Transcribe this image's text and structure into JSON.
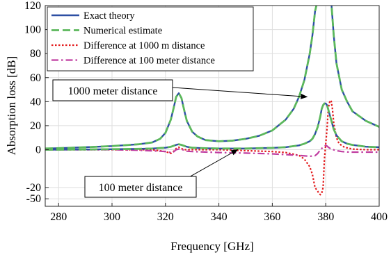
{
  "chart_data": {
    "type": "line",
    "xlabel": "Frequency [GHz]",
    "ylabel": "Absorption loss [dB]",
    "xlim": [
      275,
      400
    ],
    "ylim": [
      -60,
      120
    ],
    "x_ticks": [
      280,
      300,
      320,
      340,
      360,
      380,
      400
    ],
    "y_ticks": [
      -50,
      -20,
      0,
      20,
      40,
      60,
      80,
      100,
      120
    ],
    "y_tick_labels": [
      "-50",
      "-20",
      "0",
      "20",
      "40",
      "60",
      "80",
      "100",
      "120"
    ],
    "grid": true,
    "legend_position": "top-left",
    "series": [
      {
        "name": "Exact theory",
        "color": "#2d4fa3",
        "style": "solid",
        "x": [
          275,
          280,
          290,
          300,
          310,
          315,
          318,
          320,
          322,
          323,
          324,
          325,
          326,
          327,
          328,
          330,
          332,
          335,
          340,
          345,
          350,
          355,
          360,
          365,
          368,
          370,
          372,
          374,
          375,
          376,
          377,
          378,
          379,
          379.5,
          380.5,
          381,
          382,
          383,
          384,
          386,
          388,
          390,
          395,
          400
        ],
        "y": [
          1,
          1.3,
          2,
          3,
          4.5,
          6,
          9,
          14,
          25,
          34,
          44,
          47,
          43,
          33,
          24,
          15,
          11,
          8,
          7,
          7.5,
          9,
          11.5,
          16,
          25,
          34,
          44,
          58,
          80,
          95,
          115,
          125,
          125,
          125,
          125,
          125,
          125,
          125,
          95,
          72,
          50,
          40,
          32,
          24,
          19
        ]
      },
      {
        "name": "Numerical estimate",
        "color": "#5cb85c",
        "style": "dashed",
        "x": [
          275,
          280,
          290,
          300,
          310,
          315,
          318,
          320,
          322,
          323,
          324,
          325,
          326,
          327,
          328,
          330,
          332,
          335,
          340,
          345,
          350,
          355,
          360,
          365,
          368,
          370,
          372,
          374,
          375,
          376,
          377,
          378,
          379,
          379.5,
          380.5,
          381,
          382,
          383,
          384,
          386,
          388,
          390,
          395,
          400
        ],
        "y": [
          1,
          1.3,
          2,
          3,
          4.5,
          6,
          9,
          14,
          25,
          34,
          44,
          47,
          43,
          33,
          24,
          15,
          11,
          8,
          7,
          7.5,
          9,
          11.5,
          16,
          25,
          34,
          44,
          58,
          80,
          95,
          115,
          125,
          125,
          125,
          125,
          125,
          125,
          125,
          95,
          72,
          50,
          40,
          32,
          24,
          19
        ]
      },
      {
        "name": "Difference at 1000 m distance",
        "color": "#e31a1c",
        "style": "dotted",
        "x": [
          275,
          300,
          315,
          320,
          322,
          323,
          324,
          325,
          326,
          327,
          330,
          340,
          350,
          360,
          365,
          370,
          372,
          374,
          375,
          376,
          377,
          377.5,
          378,
          378.5,
          379,
          379.5,
          380,
          380.5,
          381,
          381.5,
          382,
          382.5,
          383,
          384,
          385,
          387,
          390,
          395,
          400
        ],
        "y": [
          0,
          0,
          0,
          -1,
          -2,
          -1,
          1,
          2,
          1,
          0,
          0,
          0,
          -0.5,
          -1,
          -1.5,
          -3,
          -5,
          -9,
          -13,
          -20,
          -30,
          -36,
          -39,
          -35,
          -20,
          -5,
          5,
          18,
          35,
          40,
          41,
          34,
          22,
          10,
          5,
          2,
          0.5,
          0,
          0
        ]
      },
      {
        "name": "Difference at 100 meter distance",
        "color": "#c03ca0",
        "style": "dashdot",
        "x": [
          275,
          300,
          310,
          318,
          320,
          322,
          323,
          324,
          325,
          326,
          327,
          328,
          330,
          340,
          350,
          360,
          365,
          370,
          374,
          376,
          377,
          378,
          379,
          379.5,
          380,
          380.5,
          381,
          382,
          384,
          386,
          388,
          390,
          395,
          400
        ],
        "y": [
          0,
          0,
          -0.3,
          -0.8,
          -1,
          -1.5,
          -1.2,
          0,
          0.5,
          0.3,
          -0.3,
          -0.8,
          -1,
          -1.5,
          -1.8,
          -2.2,
          -2.6,
          -3,
          -3.5,
          -3.2,
          -2,
          0,
          2,
          3,
          3.5,
          3,
          2,
          0.5,
          -0.5,
          -1,
          -1.2,
          -1.3,
          -1.3,
          -1.3
        ]
      },
      {
        "name": "",
        "color": "#2d4fa3",
        "style": "solid",
        "x": [
          275,
          290,
          300,
          310,
          315,
          320,
          322,
          323,
          324,
          325,
          326,
          327,
          328,
          330,
          335,
          340,
          350,
          360,
          365,
          370,
          372,
          374,
          375,
          376,
          377,
          378,
          378.5,
          379,
          379.5,
          380,
          380.5,
          381,
          382,
          383,
          384,
          386,
          388,
          390,
          395,
          400
        ],
        "y": [
          0,
          0.2,
          0.4,
          0.7,
          1,
          1.6,
          2.4,
          3.2,
          4,
          4.5,
          4,
          3.2,
          2.4,
          1.6,
          1.2,
          1,
          1,
          1.5,
          2.1,
          3.6,
          5,
          7,
          9,
          13,
          19,
          28,
          34,
          37,
          38.5,
          38.5,
          37,
          33,
          25,
          17,
          12,
          7,
          5,
          4,
          2.5,
          2
        ]
      },
      {
        "name": "",
        "color": "#5cb85c",
        "style": "dashed",
        "x": [
          275,
          290,
          300,
          310,
          315,
          320,
          322,
          323,
          324,
          325,
          326,
          327,
          328,
          330,
          335,
          340,
          350,
          360,
          365,
          370,
          372,
          374,
          375,
          376,
          377,
          378,
          378.5,
          379,
          379.5,
          380,
          380.5,
          381,
          382,
          383,
          384,
          386,
          388,
          390,
          395,
          400
        ],
        "y": [
          0,
          0.2,
          0.4,
          0.7,
          1,
          1.6,
          2.4,
          3.2,
          4,
          4.5,
          4,
          3.2,
          2.4,
          1.6,
          1.2,
          1,
          1,
          1.5,
          2.1,
          3.6,
          5,
          7,
          9,
          13,
          19,
          28,
          34,
          37,
          38.5,
          38.5,
          37,
          33,
          25,
          17,
          12,
          7,
          5,
          4,
          2.5,
          2
        ]
      }
    ],
    "annotations": [
      {
        "text": "1000 meter distance",
        "target_x": 373,
        "target_y": 44
      },
      {
        "text": "100 meter distance",
        "target_x": 347,
        "target_y": 0
      }
    ]
  }
}
